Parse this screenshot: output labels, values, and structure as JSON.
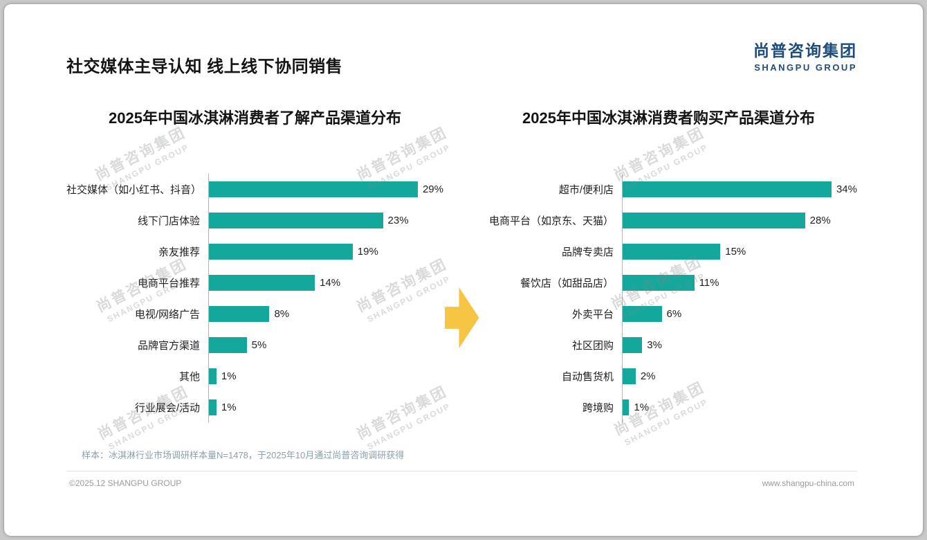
{
  "page": {
    "title": "社交媒体主导认知 线上线下协同销售",
    "logo": {
      "cn": "尚普咨询集团",
      "en": "SHANGPU GROUP"
    },
    "watermark": {
      "cn": "尚普咨询集团",
      "en": "SHANGPU GROUP"
    },
    "note": "样本：冰淇淋行业市场调研样本量N=1478，于2025年10月通过尚普咨询调研获得",
    "footer_left": "©2025.12 SHANGPU GROUP",
    "footer_right": "www.shangpu-china.com",
    "colors": {
      "bar": "#14a89c",
      "arrow": "#f6c544",
      "logo": "#1d4c7c"
    }
  },
  "chart_data": [
    {
      "type": "bar",
      "orientation": "horizontal",
      "title": "2025年中国冰淇淋消费者了解产品渠道分布",
      "categories": [
        "社交媒体（如小红书、抖音）",
        "线下门店体验",
        "亲友推荐",
        "电商平台推荐",
        "电视/网络广告",
        "品牌官方渠道",
        "其他",
        "行业展会/活动"
      ],
      "values": [
        29,
        23,
        19,
        14,
        8,
        5,
        1,
        1
      ],
      "unit": "%",
      "xlim": [
        0,
        31
      ],
      "grid": false,
      "legend": false
    },
    {
      "type": "bar",
      "orientation": "horizontal",
      "title": "2025年中国冰淇淋消费者购买产品渠道分布",
      "categories": [
        "超市/便利店",
        "电商平台（如京东、天猫）",
        "品牌专卖店",
        "餐饮店（如甜品店）",
        "外卖平台",
        "社区团购",
        "自动售货机",
        "跨境购"
      ],
      "values": [
        34,
        28,
        15,
        11,
        6,
        3,
        2,
        1
      ],
      "unit": "%",
      "xlim": [
        0,
        36
      ],
      "grid": false,
      "legend": false
    }
  ]
}
